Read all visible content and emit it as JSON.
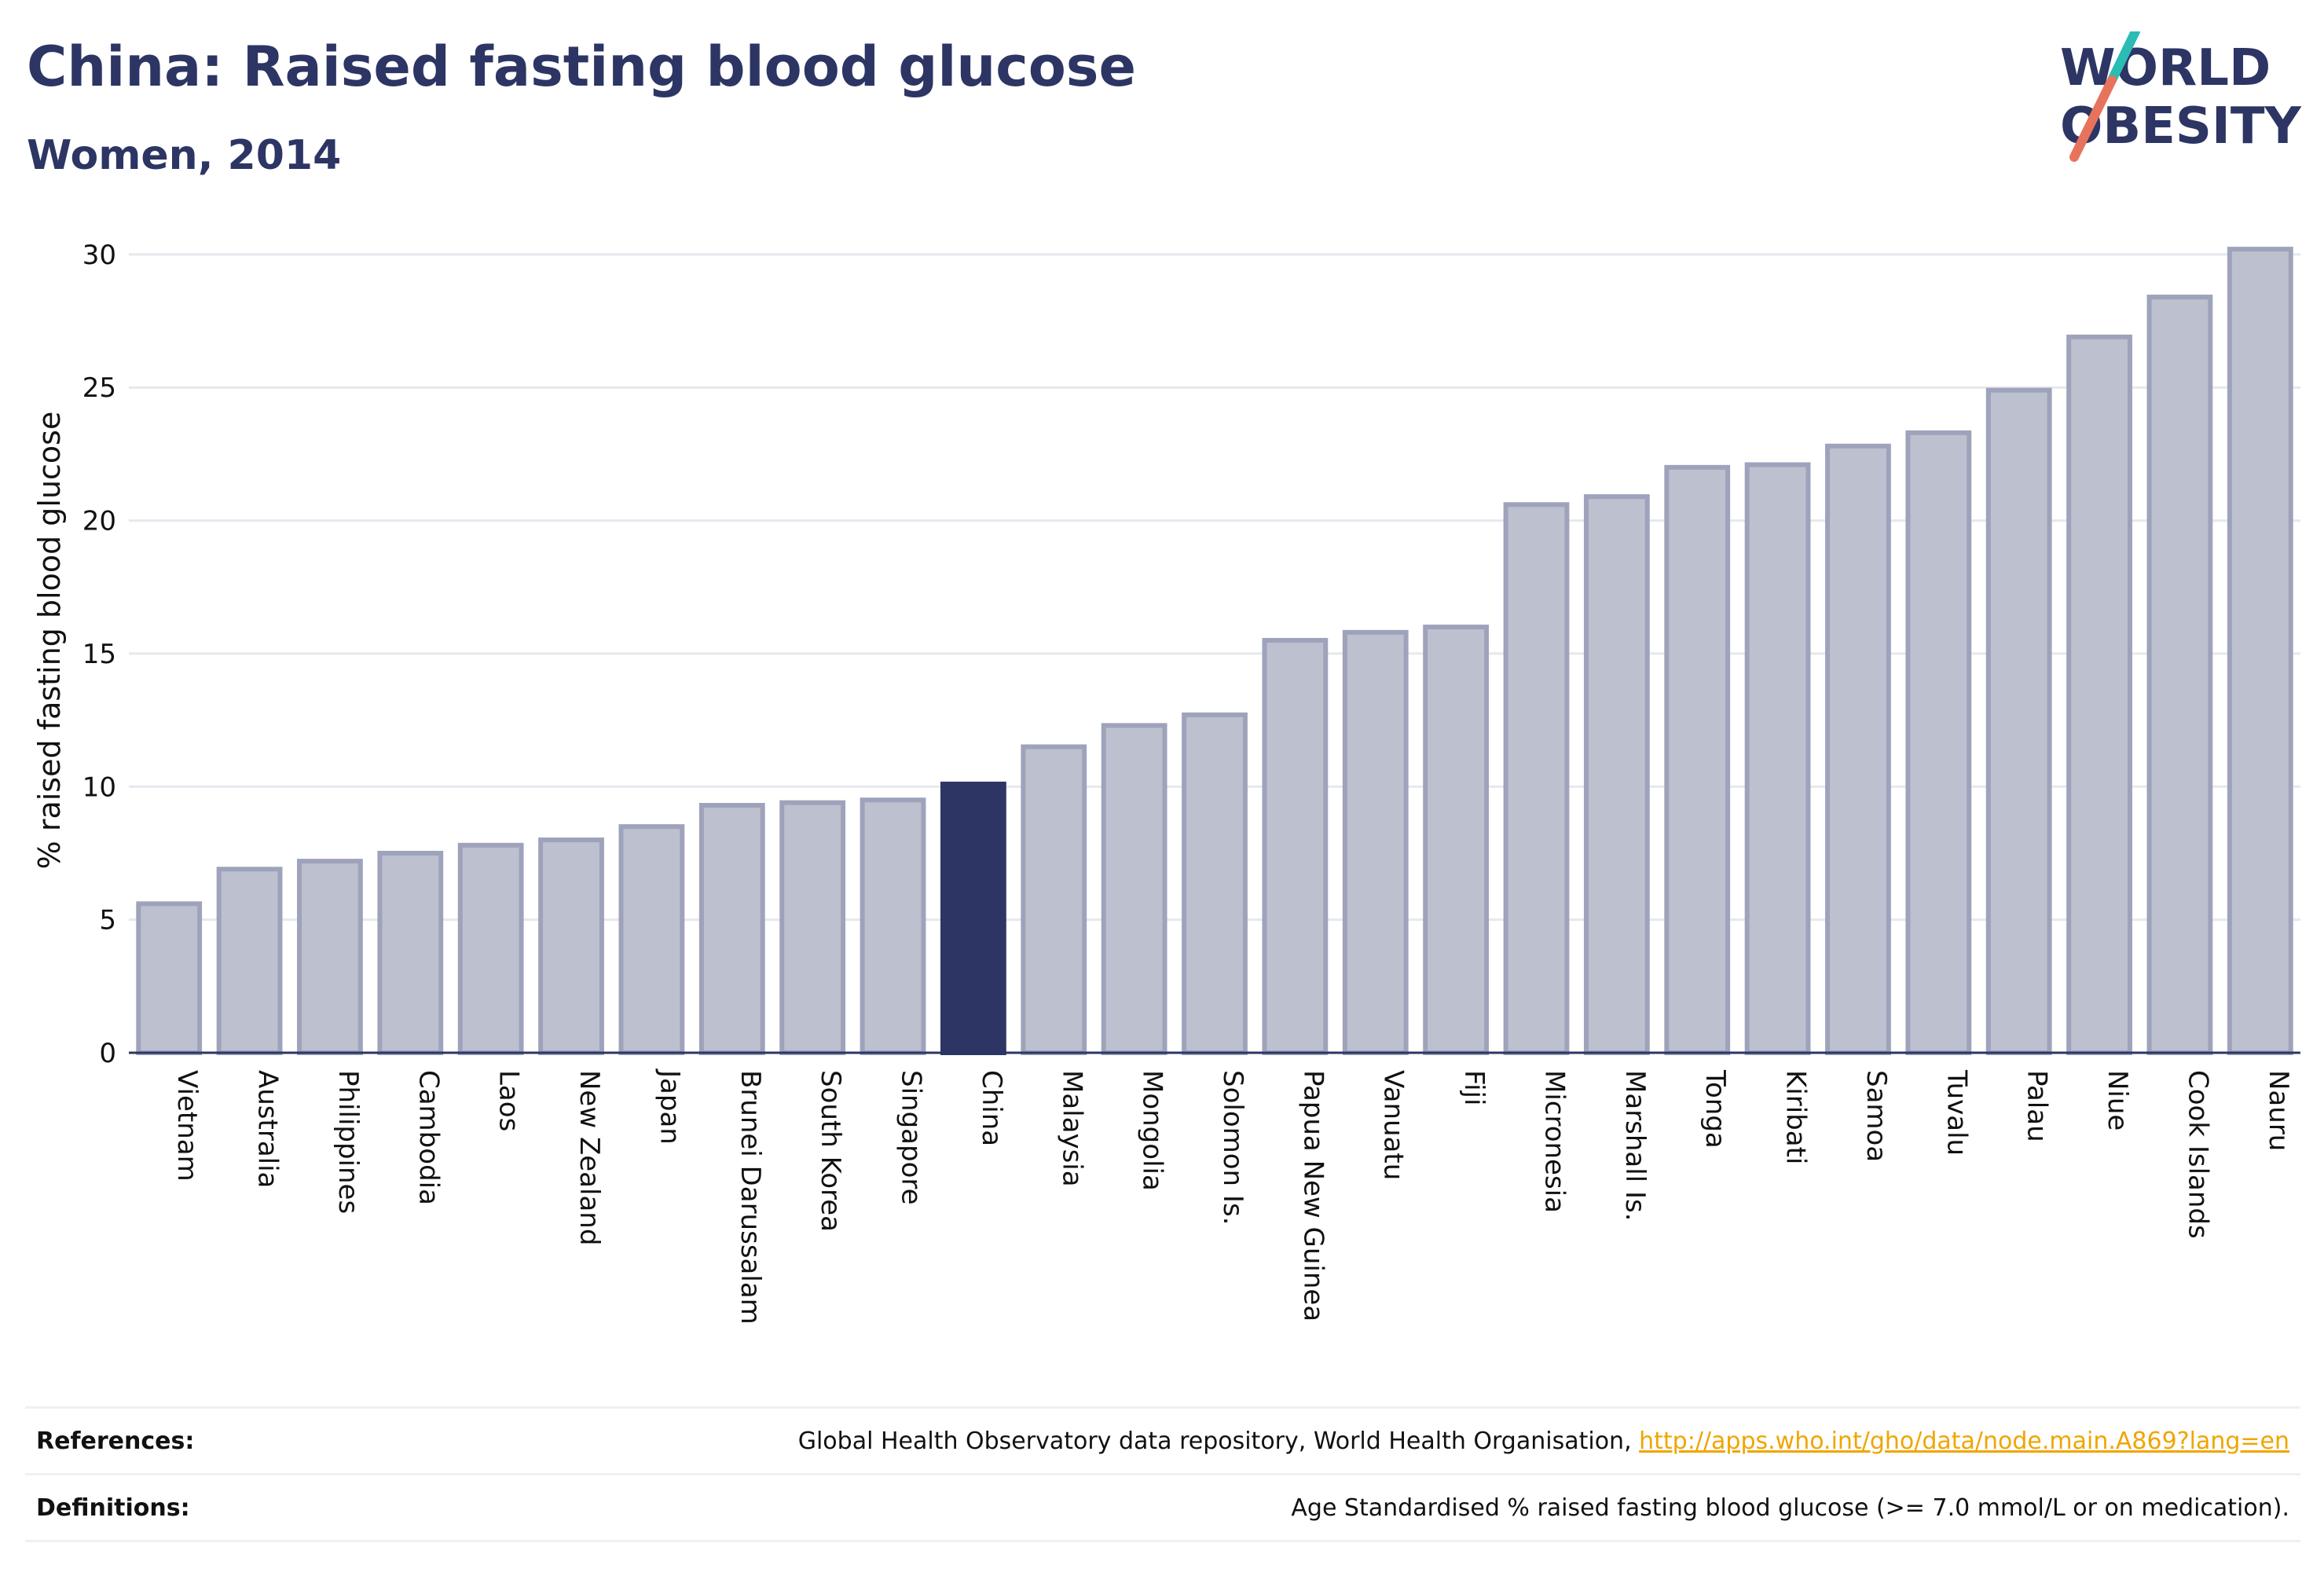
{
  "header": {
    "title": "China: Raised fasting blood glucose",
    "subtitle": "Women, 2014"
  },
  "logo": {
    "line1": "WORLD",
    "line2": "OBESITY",
    "slash_color_top": "#2bbcb4",
    "slash_color_bottom": "#e8735c"
  },
  "colors": {
    "bar_fill": "#bcc0cf",
    "bar_stroke": "#9ea3bb",
    "highlight": "#2c3563",
    "grid": "#e6e8ee",
    "axis": "#2c3563"
  },
  "chart_data": {
    "type": "bar",
    "title": "China: Raised fasting blood glucose",
    "subtitle": "Women, 2014",
    "ylabel": "% raised fasting blood glucose",
    "xlabel": "",
    "ylim": [
      0,
      31
    ],
    "yticks": [
      0,
      5,
      10,
      15,
      20,
      25,
      30
    ],
    "grid": true,
    "highlight": "China",
    "categories": [
      "Vietnam",
      "Australia",
      "Philippines",
      "Cambodia",
      "Laos",
      "New Zealand",
      "Japan",
      "Brunei Darussalam",
      "South Korea",
      "Singapore",
      "China",
      "Malaysia",
      "Mongolia",
      "Solomon Is.",
      "Papua New Guinea",
      "Vanuatu",
      "Fiji",
      "Micronesia",
      "Marshall Is.",
      "Tonga",
      "Kiribati",
      "Samoa",
      "Tuvalu",
      "Palau",
      "Niue",
      "Cook Islands",
      "Nauru"
    ],
    "values": [
      5.6,
      6.9,
      7.2,
      7.5,
      7.8,
      8.0,
      8.5,
      9.3,
      9.4,
      9.5,
      10.1,
      11.5,
      12.3,
      12.7,
      15.5,
      15.8,
      16.0,
      20.6,
      20.9,
      22.0,
      22.1,
      22.8,
      23.3,
      24.9,
      26.9,
      28.4,
      30.2
    ]
  },
  "footer": {
    "references_label": "References:",
    "references_text": "Global Health Observatory data repository, World Health Organisation, ",
    "references_link": "http://apps.who.int/gho/data/node.main.A869?lang=en",
    "definitions_label": "Definitions:",
    "definitions_text": "Age Standardised % raised fasting blood glucose (>= 7.0 mmol/L or on medication)."
  }
}
